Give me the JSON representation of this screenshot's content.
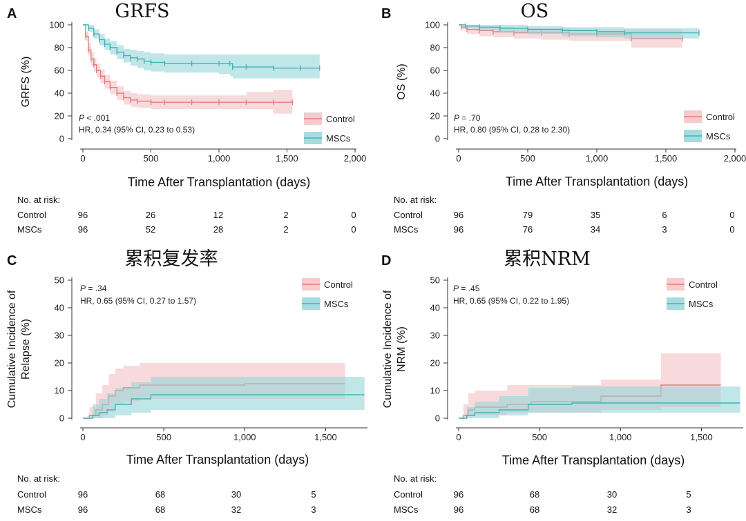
{
  "colors": {
    "control": "#e27c7c",
    "control_band": "#f5c2c4",
    "mscs": "#3fb4b8",
    "mscs_band": "#96d6d8"
  },
  "panels": [
    {
      "letter": "A",
      "title": "GRFS",
      "ylabel": [
        "GRFS (%)"
      ],
      "xlabel": "Time After Transplantation (days)",
      "xticks": [
        0,
        500,
        1000,
        1500,
        2000
      ],
      "xtick_labels": [
        "0",
        "500",
        "1,000",
        "1,500",
        "2,000"
      ],
      "yticks": [
        0,
        20,
        40,
        60,
        80,
        100
      ],
      "p_label": "P",
      "p_value": " < .001",
      "hr_text": "HR, 0.34 (95% CI, 0.23 to 0.53)",
      "legend": [
        "Control",
        "MSCs"
      ],
      "risk": {
        "title": "No. at risk:",
        "rows": [
          {
            "name": "Control",
            "values": [
              "96",
              "26",
              "12",
              "2",
              "0"
            ]
          },
          {
            "name": "MSCs",
            "values": [
              "96",
              "52",
              "28",
              "2",
              "0"
            ]
          }
        ]
      }
    },
    {
      "letter": "B",
      "title": "OS",
      "ylabel": [
        "OS (%)"
      ],
      "xlabel": "Time After Transplantation (days)",
      "xticks": [
        0,
        500,
        1000,
        1500,
        2000
      ],
      "xtick_labels": [
        "0",
        "500",
        "1,000",
        "1,500",
        "2,000"
      ],
      "yticks": [
        0,
        20,
        40,
        60,
        80,
        100
      ],
      "p_label": "P",
      "p_value": " = .70",
      "hr_text": "HR, 0.80 (95% CI, 0.28 to 2.30)",
      "legend": [
        "Control",
        "MSCs"
      ],
      "risk": {
        "title": "No. at risk:",
        "rows": [
          {
            "name": "Control",
            "values": [
              "96",
              "79",
              "35",
              "6",
              "0"
            ]
          },
          {
            "name": "MSCs",
            "values": [
              "96",
              "76",
              "34",
              "3",
              "0"
            ]
          }
        ]
      }
    },
    {
      "letter": "C",
      "title": "累积复发率",
      "ylabel": [
        "Cumulative Incidence of",
        "Relapse (%)"
      ],
      "xlabel": "Time After Transplantation (days)",
      "xticks": [
        0,
        500,
        1000,
        1500
      ],
      "xtick_labels": [
        "0",
        "500",
        "1,000",
        "1,500"
      ],
      "yticks": [
        0,
        10,
        20,
        30,
        40,
        50
      ],
      "p_label": "P",
      "p_value": " = .34",
      "hr_text": "HR, 0.65 (95% CI, 0.27 to 1.57)",
      "legend": [
        "Control",
        "MSCs"
      ],
      "risk": {
        "title": "No. at risk:",
        "rows": [
          {
            "name": "Control",
            "values": [
              "96",
              "68",
              "30",
              "5"
            ]
          },
          {
            "name": "MSCs",
            "values": [
              "96",
              "68",
              "32",
              "3"
            ]
          }
        ]
      }
    },
    {
      "letter": "D",
      "title": "累积NRM",
      "ylabel": [
        "Cumulative Incidence of",
        "NRM (%)"
      ],
      "xlabel": "Time After Transplantation (days)",
      "xticks": [
        0,
        500,
        1000,
        1500
      ],
      "xtick_labels": [
        "0",
        "500",
        "1,000",
        "1,500"
      ],
      "yticks": [
        0,
        10,
        20,
        30,
        40,
        50
      ],
      "p_label": "P",
      "p_value": " = .45",
      "hr_text": "HR, 0.65 (95% CI, 0.22 to 1.95)",
      "legend": [
        "Control",
        "MSCs"
      ],
      "risk": {
        "title": "No. at risk:",
        "rows": [
          {
            "name": "Control",
            "values": [
              "96",
              "68",
              "30",
              "5"
            ]
          },
          {
            "name": "MSCs",
            "values": [
              "96",
              "68",
              "32",
              "3"
            ]
          }
        ]
      }
    }
  ],
  "chart_data": [
    {
      "type": "line",
      "title": "GRFS",
      "xlabel": "Time After Transplantation (days)",
      "ylabel": "GRFS (%)",
      "xlim": [
        0,
        2000
      ],
      "ylim": [
        0,
        100
      ],
      "grid": false,
      "legend_position": "lower-right",
      "series": [
        {
          "name": "Control",
          "x": [
            0,
            20,
            40,
            60,
            80,
            100,
            130,
            160,
            200,
            250,
            300,
            350,
            400,
            500,
            600,
            800,
            1000,
            1200,
            1400,
            1540
          ],
          "y": [
            100,
            90,
            78,
            70,
            65,
            60,
            55,
            50,
            45,
            40,
            36,
            34,
            33,
            32,
            32,
            32,
            32,
            32,
            32,
            32
          ],
          "lower": [
            100,
            86,
            73,
            64,
            59,
            54,
            49,
            44,
            39,
            34,
            30,
            28,
            27,
            26,
            26,
            26,
            26,
            26,
            22,
            22
          ],
          "upper": [
            100,
            94,
            84,
            76,
            71,
            66,
            61,
            56,
            51,
            46,
            42,
            40,
            39,
            38,
            38,
            38,
            38,
            41,
            43,
            43
          ]
        },
        {
          "name": "MSCs",
          "x": [
            0,
            40,
            80,
            120,
            160,
            200,
            250,
            300,
            350,
            400,
            450,
            500,
            600,
            800,
            1000,
            1080,
            1100,
            1200,
            1400,
            1600,
            1740
          ],
          "y": [
            100,
            97,
            92,
            87,
            83,
            80,
            76,
            73,
            71,
            70,
            68,
            67,
            66,
            66,
            66,
            66,
            63,
            63,
            62,
            62,
            62
          ],
          "lower": [
            100,
            94,
            88,
            82,
            78,
            74,
            70,
            67,
            64,
            62,
            60,
            59,
            58,
            58,
            57,
            55,
            53,
            53,
            53,
            53,
            53
          ],
          "upper": [
            100,
            100,
            96,
            92,
            88,
            86,
            82,
            79,
            78,
            77,
            76,
            75,
            74,
            74,
            74,
            74,
            74,
            74,
            74,
            74,
            74
          ]
        }
      ]
    },
    {
      "type": "line",
      "title": "OS",
      "xlabel": "Time After Transplantation (days)",
      "ylabel": "OS (%)",
      "xlim": [
        0,
        2000
      ],
      "ylim": [
        0,
        100
      ],
      "grid": false,
      "legend_position": "lower-right",
      "series": [
        {
          "name": "Control",
          "x": [
            0,
            20,
            60,
            150,
            250,
            400,
            600,
            800,
            1000,
            1250,
            1620
          ],
          "y": [
            100,
            98,
            96,
            95,
            94,
            93,
            93,
            92,
            92,
            88,
            88
          ],
          "lower": [
            100,
            96,
            92,
            90,
            89,
            88,
            87,
            86,
            86,
            80,
            80
          ],
          "upper": [
            100,
            100,
            99,
            98,
            98,
            97,
            97,
            96,
            96,
            96,
            96
          ]
        },
        {
          "name": "MSCs",
          "x": [
            0,
            50,
            150,
            300,
            500,
            750,
            1000,
            1200,
            1740
          ],
          "y": [
            100,
            99,
            98,
            97,
            96,
            95,
            94,
            93,
            93
          ],
          "lower": [
            100,
            97,
            95,
            93,
            92,
            90,
            89,
            88,
            88
          ],
          "upper": [
            100,
            100,
            100,
            100,
            99,
            98,
            98,
            97,
            97
          ]
        }
      ]
    },
    {
      "type": "line",
      "title": "累积复发率",
      "xlabel": "Time After Transplantation (days)",
      "ylabel": "Cumulative Incidence of Relapse (%)",
      "xlim": [
        0,
        1750
      ],
      "ylim": [
        0,
        50
      ],
      "grid": false,
      "legend_position": "top-right",
      "series": [
        {
          "name": "Control",
          "x": [
            0,
            40,
            80,
            120,
            160,
            200,
            250,
            350,
            1000,
            1620
          ],
          "y": [
            0,
            1,
            3,
            5,
            8,
            10,
            11,
            12,
            12.5,
            12.5
          ],
          "lower": [
            0,
            0,
            0,
            1,
            3,
            5,
            6,
            7,
            7,
            7
          ],
          "upper": [
            0,
            4,
            9,
            12,
            16,
            18,
            19,
            20,
            20,
            20
          ]
        },
        {
          "name": "MSCs",
          "x": [
            0,
            60,
            100,
            150,
            200,
            300,
            420,
            800,
            1740
          ],
          "y": [
            0,
            1,
            2,
            3,
            5,
            7,
            8.5,
            8.5,
            8.5
          ],
          "lower": [
            0,
            0,
            0,
            0,
            1,
            2,
            3,
            3,
            4
          ],
          "upper": [
            0,
            5,
            7,
            9,
            11,
            13,
            15,
            15,
            15
          ]
        }
      ]
    },
    {
      "type": "line",
      "title": "累积NRM",
      "xlabel": "Time After Transplantation (days)",
      "ylabel": "Cumulative Incidence of NRM (%)",
      "xlim": [
        0,
        1750
      ],
      "ylim": [
        0,
        50
      ],
      "grid": false,
      "legend_position": "top-right",
      "series": [
        {
          "name": "Control",
          "x": [
            0,
            30,
            60,
            100,
            300,
            450,
            600,
            880,
            1250,
            1620
          ],
          "y": [
            0,
            1,
            3,
            4,
            5,
            6,
            6,
            8,
            12,
            12
          ],
          "lower": [
            0,
            0,
            1,
            1,
            2,
            2,
            2,
            3,
            4,
            4
          ],
          "upper": [
            0,
            5,
            9,
            10,
            12,
            12,
            12,
            14,
            23.5,
            23.5
          ]
        },
        {
          "name": "MSCs",
          "x": [
            0,
            50,
            100,
            250,
            430,
            700,
            1000,
            1300,
            1740
          ],
          "y": [
            0,
            1,
            2,
            3,
            5,
            5.5,
            5.5,
            5.5,
            5.5
          ],
          "lower": [
            0,
            0,
            0,
            1,
            2,
            2,
            2,
            2,
            2
          ],
          "upper": [
            0,
            4,
            6,
            8,
            11,
            11.5,
            11.5,
            11.5,
            11.5
          ]
        }
      ]
    }
  ]
}
